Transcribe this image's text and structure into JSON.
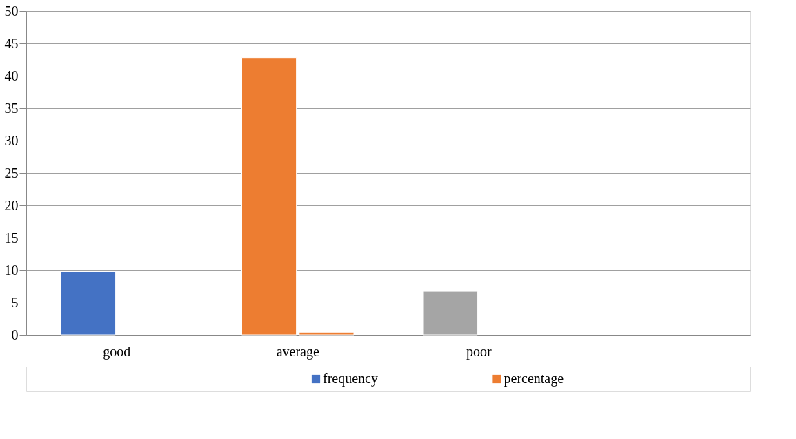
{
  "chart_data": {
    "type": "bar",
    "categories": [
      "good",
      "average",
      "poor",
      null
    ],
    "series": [
      {
        "name": "frequency",
        "color": "#4472c4",
        "colors": [
          "#4472c4",
          "#ed7d31",
          "#a5a5a5",
          "#ffc000"
        ],
        "values": [
          9.8,
          42.8,
          6.8,
          null
        ]
      },
      {
        "name": "percentage",
        "color": "#ed7d31",
        "values": [
          null,
          0.4,
          null,
          null
        ]
      }
    ],
    "ylim": [
      0,
      50
    ],
    "yticks": [
      0,
      5,
      10,
      15,
      20,
      25,
      30,
      35,
      40,
      45,
      50
    ],
    "grid": "y",
    "legend": "bottom"
  }
}
